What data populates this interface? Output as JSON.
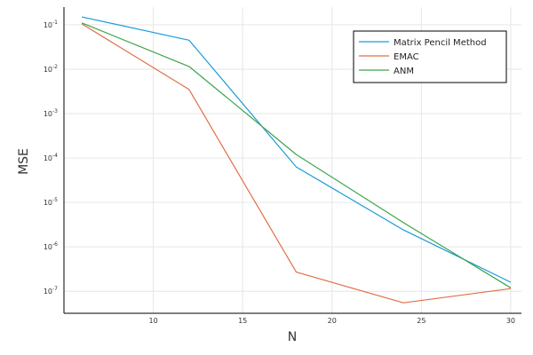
{
  "chart_data": {
    "type": "line",
    "xlabel": "N",
    "ylabel": "MSE",
    "x": [
      6,
      12,
      18,
      24,
      30
    ],
    "xlim": [
      5,
      30.6
    ],
    "ylim": [
      3.2e-08,
      0.25
    ],
    "y_scale": "log",
    "x_ticks": [
      10,
      15,
      20,
      25,
      30
    ],
    "y_tick_exponents": [
      -1,
      -2,
      -3,
      -4,
      -5,
      -6,
      -7
    ],
    "y_tick_base": "10",
    "grid": true,
    "legend_position": "top-right",
    "series": [
      {
        "name": "Matrix Pencil Method",
        "color": "#1a9bdb",
        "values": [
          0.15,
          0.045,
          6.3e-05,
          2.4e-06,
          1.6e-07
        ]
      },
      {
        "name": "EMAC",
        "color": "#e26f46",
        "values": [
          0.105,
          0.0035,
          2.7e-07,
          5.5e-08,
          1.15e-07
        ]
      },
      {
        "name": "ANM",
        "color": "#3da44d",
        "values": [
          0.11,
          0.0115,
          0.00012,
          3.5e-06,
          1.2e-07
        ]
      }
    ]
  }
}
